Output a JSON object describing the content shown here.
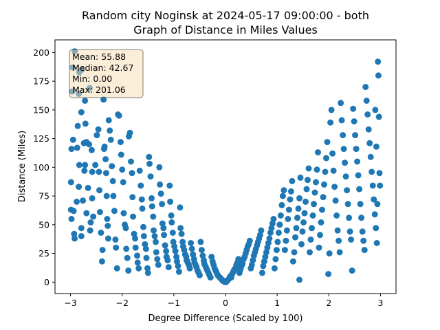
{
  "chart_data": {
    "type": "scatter",
    "title": "Random city Noginsk at 2024-05-17 09:00:00  - both",
    "subtitle": "Graph of Distance in Miles Values",
    "xlabel": "Degree Difference (Scaled by 100)",
    "ylabel": "Distance (Miles)",
    "xlim": [
      -3.3,
      3.3
    ],
    "ylim": [
      -10,
      211
    ],
    "xticks": [
      -3,
      -2,
      -1,
      0,
      1,
      2,
      3
    ],
    "yticks": [
      0,
      25,
      50,
      75,
      100,
      125,
      150,
      175,
      200
    ],
    "grid": false,
    "marker_color": "#1f77b4",
    "stats_box": {
      "placement": "top-left",
      "lines": [
        "Mean: 55.88",
        "Median: 42.67",
        "Min: 0.00",
        "Max: 201.06"
      ]
    },
    "points": [
      [
        -2.96,
        187
      ],
      [
        -2.92,
        201
      ],
      [
        -2.97,
        166
      ],
      [
        -2.95,
        124
      ],
      [
        -2.98,
        116
      ],
      [
        -2.99,
        87
      ],
      [
        -2.99,
        63
      ],
      [
        -2.94,
        62
      ],
      [
        -2.98,
        55
      ],
      [
        -2.93,
        42
      ],
      [
        -2.92,
        38
      ],
      [
        -2.88,
        70
      ],
      [
        -2.84,
        83
      ],
      [
        -2.83,
        102
      ],
      [
        -2.87,
        117
      ],
      [
        -2.86,
        136
      ],
      [
        -2.84,
        164
      ],
      [
        -2.83,
        183
      ],
      [
        -2.78,
        185
      ],
      [
        -2.79,
        148
      ],
      [
        -2.79,
        40
      ],
      [
        -2.79,
        47
      ],
      [
        -2.76,
        71
      ],
      [
        -2.73,
        97
      ],
      [
        -2.74,
        121
      ],
      [
        -2.72,
        102
      ],
      [
        -2.72,
        158
      ],
      [
        -2.71,
        138
      ],
      [
        -2.69,
        122
      ],
      [
        -2.69,
        60
      ],
      [
        -2.66,
        82
      ],
      [
        -2.64,
        120
      ],
      [
        -2.63,
        169
      ],
      [
        -2.62,
        45
      ],
      [
        -2.61,
        52
      ],
      [
        -2.59,
        115
      ],
      [
        -2.58,
        96
      ],
      [
        -2.58,
        73
      ],
      [
        -2.56,
        57
      ],
      [
        -2.52,
        102
      ],
      [
        -2.49,
        128
      ],
      [
        -2.46,
        133
      ],
      [
        -2.45,
        96
      ],
      [
        -2.44,
        80
      ],
      [
        -2.43,
        61
      ],
      [
        -2.41,
        43
      ],
      [
        -2.39,
        18
      ],
      [
        -2.38,
        28
      ],
      [
        -2.36,
        159
      ],
      [
        -2.35,
        116
      ],
      [
        -2.34,
        118
      ],
      [
        -2.32,
        107
      ],
      [
        -2.31,
        95
      ],
      [
        -2.3,
        75
      ],
      [
        -2.29,
        55
      ],
      [
        -2.28,
        49
      ],
      [
        -2.27,
        38
      ],
      [
        -2.26,
        141
      ],
      [
        -2.24,
        132
      ],
      [
        -2.22,
        124
      ],
      [
        -2.2,
        101
      ],
      [
        -2.18,
        88
      ],
      [
        -2.17,
        75
      ],
      [
        -2.15,
        62
      ],
      [
        -2.13,
        37
      ],
      [
        -2.12,
        30
      ],
      [
        -2.1,
        12
      ],
      [
        -2.08,
        146
      ],
      [
        -2.06,
        145
      ],
      [
        -2.03,
        122
      ],
      [
        -2.02,
        111
      ],
      [
        -2,
        98
      ],
      [
        -1.98,
        87
      ],
      [
        -1.97,
        60
      ],
      [
        -1.95,
        50
      ],
      [
        -1.93,
        47
      ],
      [
        -1.92,
        29
      ],
      [
        -1.9,
        21
      ],
      [
        -1.88,
        10
      ],
      [
        -1.87,
        127
      ],
      [
        -1.85,
        130
      ],
      [
        -1.83,
        105
      ],
      [
        -1.81,
        95
      ],
      [
        -1.8,
        74
      ],
      [
        -1.79,
        57
      ],
      [
        -1.77,
        42
      ],
      [
        -1.75,
        38
      ],
      [
        -1.74,
        30
      ],
      [
        -1.71,
        23
      ],
      [
        -1.7,
        17
      ],
      [
        -1.68,
        12
      ],
      [
        -1.66,
        97
      ],
      [
        -1.64,
        84
      ],
      [
        -1.62,
        72
      ],
      [
        -1.61,
        64
      ],
      [
        -1.59,
        48
      ],
      [
        -1.58,
        40
      ],
      [
        -1.56,
        33
      ],
      [
        -1.54,
        29
      ],
      [
        -1.53,
        21
      ],
      [
        -1.51,
        12
      ],
      [
        -1.5,
        8
      ],
      [
        -1.48,
        109
      ],
      [
        -1.47,
        103
      ],
      [
        -1.45,
        92
      ],
      [
        -1.43,
        73
      ],
      [
        -1.42,
        66
      ],
      [
        -1.4,
        57
      ],
      [
        -1.39,
        45
      ],
      [
        -1.37,
        40
      ],
      [
        -1.35,
        35
      ],
      [
        -1.34,
        26
      ],
      [
        -1.32,
        20
      ],
      [
        -1.3,
        15
      ],
      [
        -1.28,
        100
      ],
      [
        -1.27,
        85
      ],
      [
        -1.25,
        77
      ],
      [
        -1.23,
        68
      ],
      [
        -1.22,
        51
      ],
      [
        -1.2,
        47
      ],
      [
        -1.19,
        41
      ],
      [
        -1.17,
        32
      ],
      [
        -1.15,
        27
      ],
      [
        -1.14,
        22
      ],
      [
        -1.12,
        19
      ],
      [
        -1.1,
        13
      ],
      [
        -1.08,
        84
      ],
      [
        -1.07,
        70
      ],
      [
        -1.05,
        58
      ],
      [
        -1.04,
        52
      ],
      [
        -1.02,
        43
      ],
      [
        -1.01,
        35
      ],
      [
        -0.99,
        31
      ],
      [
        -0.97,
        27
      ],
      [
        -0.95,
        22
      ],
      [
        -0.94,
        18
      ],
      [
        -0.92,
        14
      ],
      [
        -0.9,
        9
      ],
      [
        -0.88,
        65
      ],
      [
        -0.87,
        47
      ],
      [
        -0.85,
        42
      ],
      [
        -0.83,
        35
      ],
      [
        -0.82,
        31
      ],
      [
        -0.8,
        28
      ],
      [
        -0.78,
        24
      ],
      [
        -0.76,
        22
      ],
      [
        -0.75,
        19
      ],
      [
        -0.73,
        17
      ],
      [
        -0.71,
        15
      ],
      [
        -0.69,
        12
      ],
      [
        -0.67,
        34
      ],
      [
        -0.65,
        29
      ],
      [
        -0.63,
        24
      ],
      [
        -0.61,
        20
      ],
      [
        -0.6,
        17
      ],
      [
        -0.58,
        15
      ],
      [
        -0.56,
        13
      ],
      [
        -0.54,
        10
      ],
      [
        -0.52,
        8
      ],
      [
        -0.5,
        6
      ],
      [
        -0.48,
        35
      ],
      [
        -0.46,
        28
      ],
      [
        -0.44,
        23
      ],
      [
        -0.42,
        19
      ],
      [
        -0.41,
        16
      ],
      [
        -0.39,
        14
      ],
      [
        -0.37,
        12
      ],
      [
        -0.35,
        10
      ],
      [
        -0.33,
        8
      ],
      [
        -0.31,
        6
      ],
      [
        -0.29,
        4
      ],
      [
        -0.27,
        22
      ],
      [
        -0.25,
        18
      ],
      [
        -0.23,
        15
      ],
      [
        -0.21,
        12
      ],
      [
        -0.19,
        10
      ],
      [
        -0.17,
        8
      ],
      [
        -0.15,
        6
      ],
      [
        -0.13,
        5
      ],
      [
        -0.11,
        4
      ],
      [
        -0.09,
        3
      ],
      [
        -0.07,
        2
      ],
      [
        -0.05,
        1
      ],
      [
        -0.03,
        1
      ],
      [
        -0.01,
        0
      ],
      [
        0.01,
        0
      ],
      [
        0.03,
        1
      ],
      [
        0.05,
        2
      ],
      [
        0.07,
        3
      ],
      [
        0.09,
        5
      ],
      [
        0.11,
        4
      ],
      [
        0.13,
        7
      ],
      [
        0.15,
        9
      ],
      [
        0.17,
        11
      ],
      [
        0.19,
        12
      ],
      [
        0.21,
        15
      ],
      [
        0.23,
        17
      ],
      [
        0.25,
        20
      ],
      [
        0.27,
        8
      ],
      [
        0.29,
        11
      ],
      [
        0.31,
        14
      ],
      [
        0.33,
        16
      ],
      [
        0.35,
        20
      ],
      [
        0.37,
        22
      ],
      [
        0.39,
        25
      ],
      [
        0.41,
        28
      ],
      [
        0.43,
        31
      ],
      [
        0.45,
        33
      ],
      [
        0.47,
        36
      ],
      [
        0.49,
        12
      ],
      [
        0.51,
        15
      ],
      [
        0.53,
        19
      ],
      [
        0.55,
        23
      ],
      [
        0.57,
        26
      ],
      [
        0.59,
        29
      ],
      [
        0.61,
        32
      ],
      [
        0.63,
        35
      ],
      [
        0.65,
        38
      ],
      [
        0.67,
        41
      ],
      [
        0.69,
        45
      ],
      [
        0.71,
        8
      ],
      [
        0.73,
        14
      ],
      [
        0.75,
        18
      ],
      [
        0.77,
        22
      ],
      [
        0.79,
        26
      ],
      [
        0.81,
        30
      ],
      [
        0.83,
        34
      ],
      [
        0.85,
        38
      ],
      [
        0.87,
        43
      ],
      [
        0.89,
        47
      ],
      [
        0.91,
        51
      ],
      [
        0.93,
        55
      ],
      [
        0.95,
        12
      ],
      [
        0.97,
        20
      ],
      [
        0.99,
        28
      ],
      [
        1.01,
        35
      ],
      [
        1.03,
        43
      ],
      [
        1.05,
        50
      ],
      [
        1.07,
        58
      ],
      [
        1.09,
        67
      ],
      [
        1.11,
        75
      ],
      [
        1.13,
        80
      ],
      [
        1.15,
        28
      ],
      [
        1.17,
        36
      ],
      [
        1.19,
        45
      ],
      [
        1.21,
        55
      ],
      [
        1.23,
        63
      ],
      [
        1.25,
        72
      ],
      [
        1.27,
        79
      ],
      [
        1.29,
        88
      ],
      [
        1.31,
        18
      ],
      [
        1.33,
        26
      ],
      [
        1.35,
        39
      ],
      [
        1.37,
        47
      ],
      [
        1.39,
        56
      ],
      [
        1.41,
        64
      ],
      [
        1.43,
        73
      ],
      [
        1.45,
        91
      ],
      [
        1.43,
        2
      ],
      [
        1.47,
        33
      ],
      [
        1.49,
        44
      ],
      [
        1.51,
        52
      ],
      [
        1.53,
        60
      ],
      [
        1.55,
        70
      ],
      [
        1.57,
        81
      ],
      [
        1.59,
        89
      ],
      [
        1.61,
        99
      ],
      [
        1.63,
        26
      ],
      [
        1.65,
        37
      ],
      [
        1.67,
        47
      ],
      [
        1.69,
        58
      ],
      [
        1.71,
        68
      ],
      [
        1.73,
        78
      ],
      [
        1.75,
        87
      ],
      [
        1.77,
        98
      ],
      [
        1.79,
        113
      ],
      [
        1.81,
        30
      ],
      [
        1.83,
        41
      ],
      [
        1.85,
        52
      ],
      [
        1.87,
        63
      ],
      [
        1.89,
        74
      ],
      [
        1.91,
        85
      ],
      [
        1.93,
        96
      ],
      [
        1.95,
        108
      ],
      [
        1.97,
        122
      ],
      [
        1.99,
        7
      ],
      [
        2.01,
        25
      ],
      [
        2.03,
        139
      ],
      [
        2.05,
        150
      ],
      [
        2.07,
        112
      ],
      [
        2.09,
        97
      ],
      [
        2.11,
        83
      ],
      [
        2.13,
        71
      ],
      [
        2.15,
        58
      ],
      [
        2.17,
        45
      ],
      [
        2.19,
        36
      ],
      [
        2.21,
        26
      ],
      [
        2.23,
        156
      ],
      [
        2.25,
        141
      ],
      [
        2.27,
        128
      ],
      [
        2.29,
        116
      ],
      [
        2.31,
        104
      ],
      [
        2.33,
        92
      ],
      [
        2.35,
        80
      ],
      [
        2.37,
        68
      ],
      [
        2.39,
        56
      ],
      [
        2.41,
        44
      ],
      [
        2.43,
        37
      ],
      [
        2.45,
        10
      ],
      [
        2.47,
        151
      ],
      [
        2.49,
        140
      ],
      [
        2.51,
        128
      ],
      [
        2.53,
        116
      ],
      [
        2.55,
        105
      ],
      [
        2.57,
        93
      ],
      [
        2.59,
        81
      ],
      [
        2.61,
        68
      ],
      [
        2.63,
        56
      ],
      [
        2.65,
        44
      ],
      [
        2.67,
        36
      ],
      [
        2.69,
        28
      ],
      [
        2.71,
        170
      ],
      [
        2.73,
        158
      ],
      [
        2.75,
        146
      ],
      [
        2.77,
        133
      ],
      [
        2.79,
        121
      ],
      [
        2.81,
        109
      ],
      [
        2.83,
        96
      ],
      [
        2.85,
        84
      ],
      [
        2.87,
        72
      ],
      [
        2.89,
        59
      ],
      [
        2.91,
        47
      ],
      [
        2.93,
        34
      ],
      [
        2.95,
        192
      ],
      [
        2.96,
        180
      ],
      [
        2.97,
        144
      ],
      [
        2.98,
        95
      ],
      [
        2.99,
        84
      ],
      [
        2.92,
        118
      ],
      [
        2.94,
        68
      ],
      [
        2.9,
        150
      ]
    ]
  }
}
